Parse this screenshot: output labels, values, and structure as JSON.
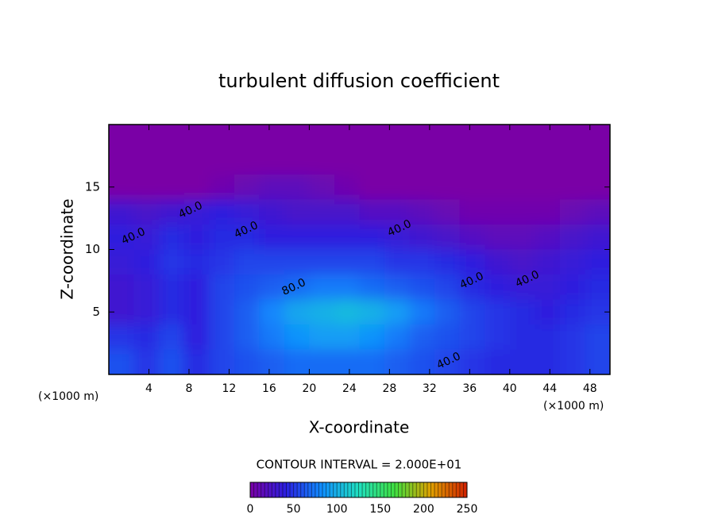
{
  "chart_data": {
    "type": "contour",
    "title": "turbulent diffusion coefficient",
    "xlabel": "X-coordinate",
    "ylabel": "Z-coordinate",
    "x_unit": "(×1000 m)",
    "y_unit": "(×1000 m)",
    "xlim": [
      0,
      50
    ],
    "ylim": [
      0,
      20
    ],
    "xticks": [
      4,
      8,
      12,
      16,
      20,
      24,
      28,
      32,
      36,
      40,
      44,
      48
    ],
    "yticks": [
      5,
      10,
      15
    ],
    "x": [
      1.25,
      3.75,
      6.25,
      8.75,
      11.25,
      13.75,
      16.25,
      18.75,
      21.25,
      23.75,
      26.25,
      28.75,
      31.25,
      33.75,
      36.25,
      38.75,
      41.25,
      43.75,
      46.25,
      48.75
    ],
    "y": [
      19,
      17,
      15,
      13,
      11,
      9,
      7,
      5,
      3,
      1
    ],
    "z": [
      [
        0,
        0,
        0,
        0,
        0,
        0,
        0,
        0,
        0,
        0,
        0,
        0,
        0,
        0,
        0,
        0,
        0,
        0,
        0,
        0
      ],
      [
        0,
        0,
        0,
        0,
        0,
        0,
        0,
        0,
        0,
        0,
        0,
        0,
        0,
        0,
        0,
        0,
        0,
        0,
        0,
        0
      ],
      [
        0,
        0,
        0,
        0,
        5,
        10,
        15,
        15,
        10,
        5,
        0,
        0,
        0,
        0,
        0,
        0,
        0,
        0,
        0,
        0
      ],
      [
        30,
        25,
        30,
        35,
        40,
        35,
        30,
        25,
        25,
        25,
        20,
        20,
        15,
        10,
        5,
        5,
        5,
        5,
        10,
        15
      ],
      [
        40,
        35,
        45,
        40,
        45,
        45,
        40,
        40,
        40,
        40,
        40,
        35,
        30,
        25,
        20,
        15,
        15,
        20,
        25,
        30
      ],
      [
        35,
        40,
        50,
        45,
        50,
        55,
        55,
        55,
        55,
        55,
        55,
        50,
        50,
        45,
        40,
        30,
        25,
        30,
        35,
        40
      ],
      [
        30,
        35,
        45,
        40,
        55,
        60,
        65,
        70,
        75,
        75,
        70,
        65,
        60,
        55,
        45,
        40,
        35,
        35,
        40,
        45
      ],
      [
        30,
        35,
        45,
        40,
        55,
        65,
        80,
        95,
        100,
        105,
        100,
        90,
        75,
        65,
        55,
        50,
        45,
        40,
        45,
        50
      ],
      [
        50,
        45,
        55,
        40,
        55,
        65,
        75,
        85,
        90,
        90,
        85,
        75,
        65,
        60,
        55,
        50,
        45,
        45,
        50,
        55
      ],
      [
        60,
        50,
        60,
        45,
        55,
        60,
        65,
        70,
        70,
        70,
        70,
        65,
        60,
        55,
        50,
        45,
        45,
        45,
        50,
        55
      ]
    ],
    "contour_labels": [
      "40.0",
      "40.0",
      "40.0",
      "40.0",
      "40.0",
      "40.0",
      "40.0",
      "80.0"
    ],
    "contour_interval": "CONTOUR INTERVAL = 2.000E+01",
    "colormap": [
      "#7a00a6",
      "#2a20e0",
      "#1090ff",
      "#20e0c0",
      "#40e040",
      "#e0a000",
      "#d02000"
    ],
    "colorbar_lim": [
      0,
      250
    ],
    "colorbar_ticks": [
      0,
      50,
      100,
      150,
      200,
      250
    ]
  }
}
